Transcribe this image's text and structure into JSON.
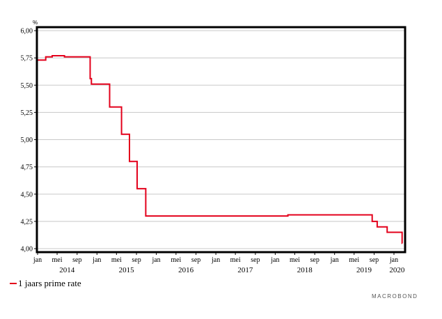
{
  "chart_data": {
    "type": "line",
    "unit_label": "%",
    "ylim": [
      4.0,
      6.0
    ],
    "y_ticks": [
      "6,00",
      "5,75",
      "5,50",
      "5,25",
      "5,00",
      "4,75",
      "4,50",
      "4,25",
      "4,00"
    ],
    "y_tick_values": [
      6.0,
      5.75,
      5.5,
      5.25,
      5.0,
      4.75,
      4.5,
      4.25,
      4.0
    ],
    "x_range": [
      "2014-01-01",
      "2020-03-01"
    ],
    "month_ticks": [
      {
        "label": "jan",
        "date": "2014-01-01"
      },
      {
        "label": "mei",
        "date": "2014-05-01"
      },
      {
        "label": "sep",
        "date": "2014-09-01"
      },
      {
        "label": "jan",
        "date": "2015-01-01"
      },
      {
        "label": "mei",
        "date": "2015-05-01"
      },
      {
        "label": "sep",
        "date": "2015-09-01"
      },
      {
        "label": "jan",
        "date": "2016-01-01"
      },
      {
        "label": "mei",
        "date": "2016-05-01"
      },
      {
        "label": "sep",
        "date": "2016-09-01"
      },
      {
        "label": "jan",
        "date": "2017-01-01"
      },
      {
        "label": "mei",
        "date": "2017-05-01"
      },
      {
        "label": "sep",
        "date": "2017-09-01"
      },
      {
        "label": "jan",
        "date": "2018-01-01"
      },
      {
        "label": "mei",
        "date": "2018-05-01"
      },
      {
        "label": "sep",
        "date": "2018-09-01"
      },
      {
        "label": "jan",
        "date": "2019-01-01"
      },
      {
        "label": "mei",
        "date": "2019-05-01"
      },
      {
        "label": "sep",
        "date": "2019-09-01"
      },
      {
        "label": "jan",
        "date": "2020-01-01"
      }
    ],
    "year_labels": [
      {
        "label": "2014",
        "date": "2014-07-01"
      },
      {
        "label": "2015",
        "date": "2015-07-01"
      },
      {
        "label": "2016",
        "date": "2016-07-01"
      },
      {
        "label": "2017",
        "date": "2017-07-01"
      },
      {
        "label": "2018",
        "date": "2018-07-01"
      },
      {
        "label": "2019",
        "date": "2019-07-01"
      },
      {
        "label": "2020",
        "date": "2020-01-20"
      }
    ],
    "grid": "horizontal",
    "legend_position": "bottom-left",
    "series": [
      {
        "name": "1 jaars prime rate",
        "color": "#e3001b",
        "step": true,
        "points": [
          {
            "x": "2014-01-01",
            "y": 5.73
          },
          {
            "x": "2014-02-20",
            "y": 5.76
          },
          {
            "x": "2014-04-01",
            "y": 5.77
          },
          {
            "x": "2014-06-15",
            "y": 5.76
          },
          {
            "x": "2014-11-20",
            "y": 5.56
          },
          {
            "x": "2014-11-28",
            "y": 5.51
          },
          {
            "x": "2015-03-20",
            "y": 5.3
          },
          {
            "x": "2015-06-01",
            "y": 5.05
          },
          {
            "x": "2015-07-20",
            "y": 4.8
          },
          {
            "x": "2015-09-05",
            "y": 4.55
          },
          {
            "x": "2015-10-28",
            "y": 4.3
          },
          {
            "x": "2018-03-20",
            "y": 4.31
          },
          {
            "x": "2019-08-20",
            "y": 4.25
          },
          {
            "x": "2019-09-20",
            "y": 4.2
          },
          {
            "x": "2019-11-20",
            "y": 4.15
          },
          {
            "x": "2020-02-20",
            "y": 4.05
          }
        ],
        "end": "2020-02-22"
      }
    ]
  },
  "legend": {
    "label": "1 jaars prime rate"
  },
  "brand": {
    "text": "MACROBOND"
  }
}
